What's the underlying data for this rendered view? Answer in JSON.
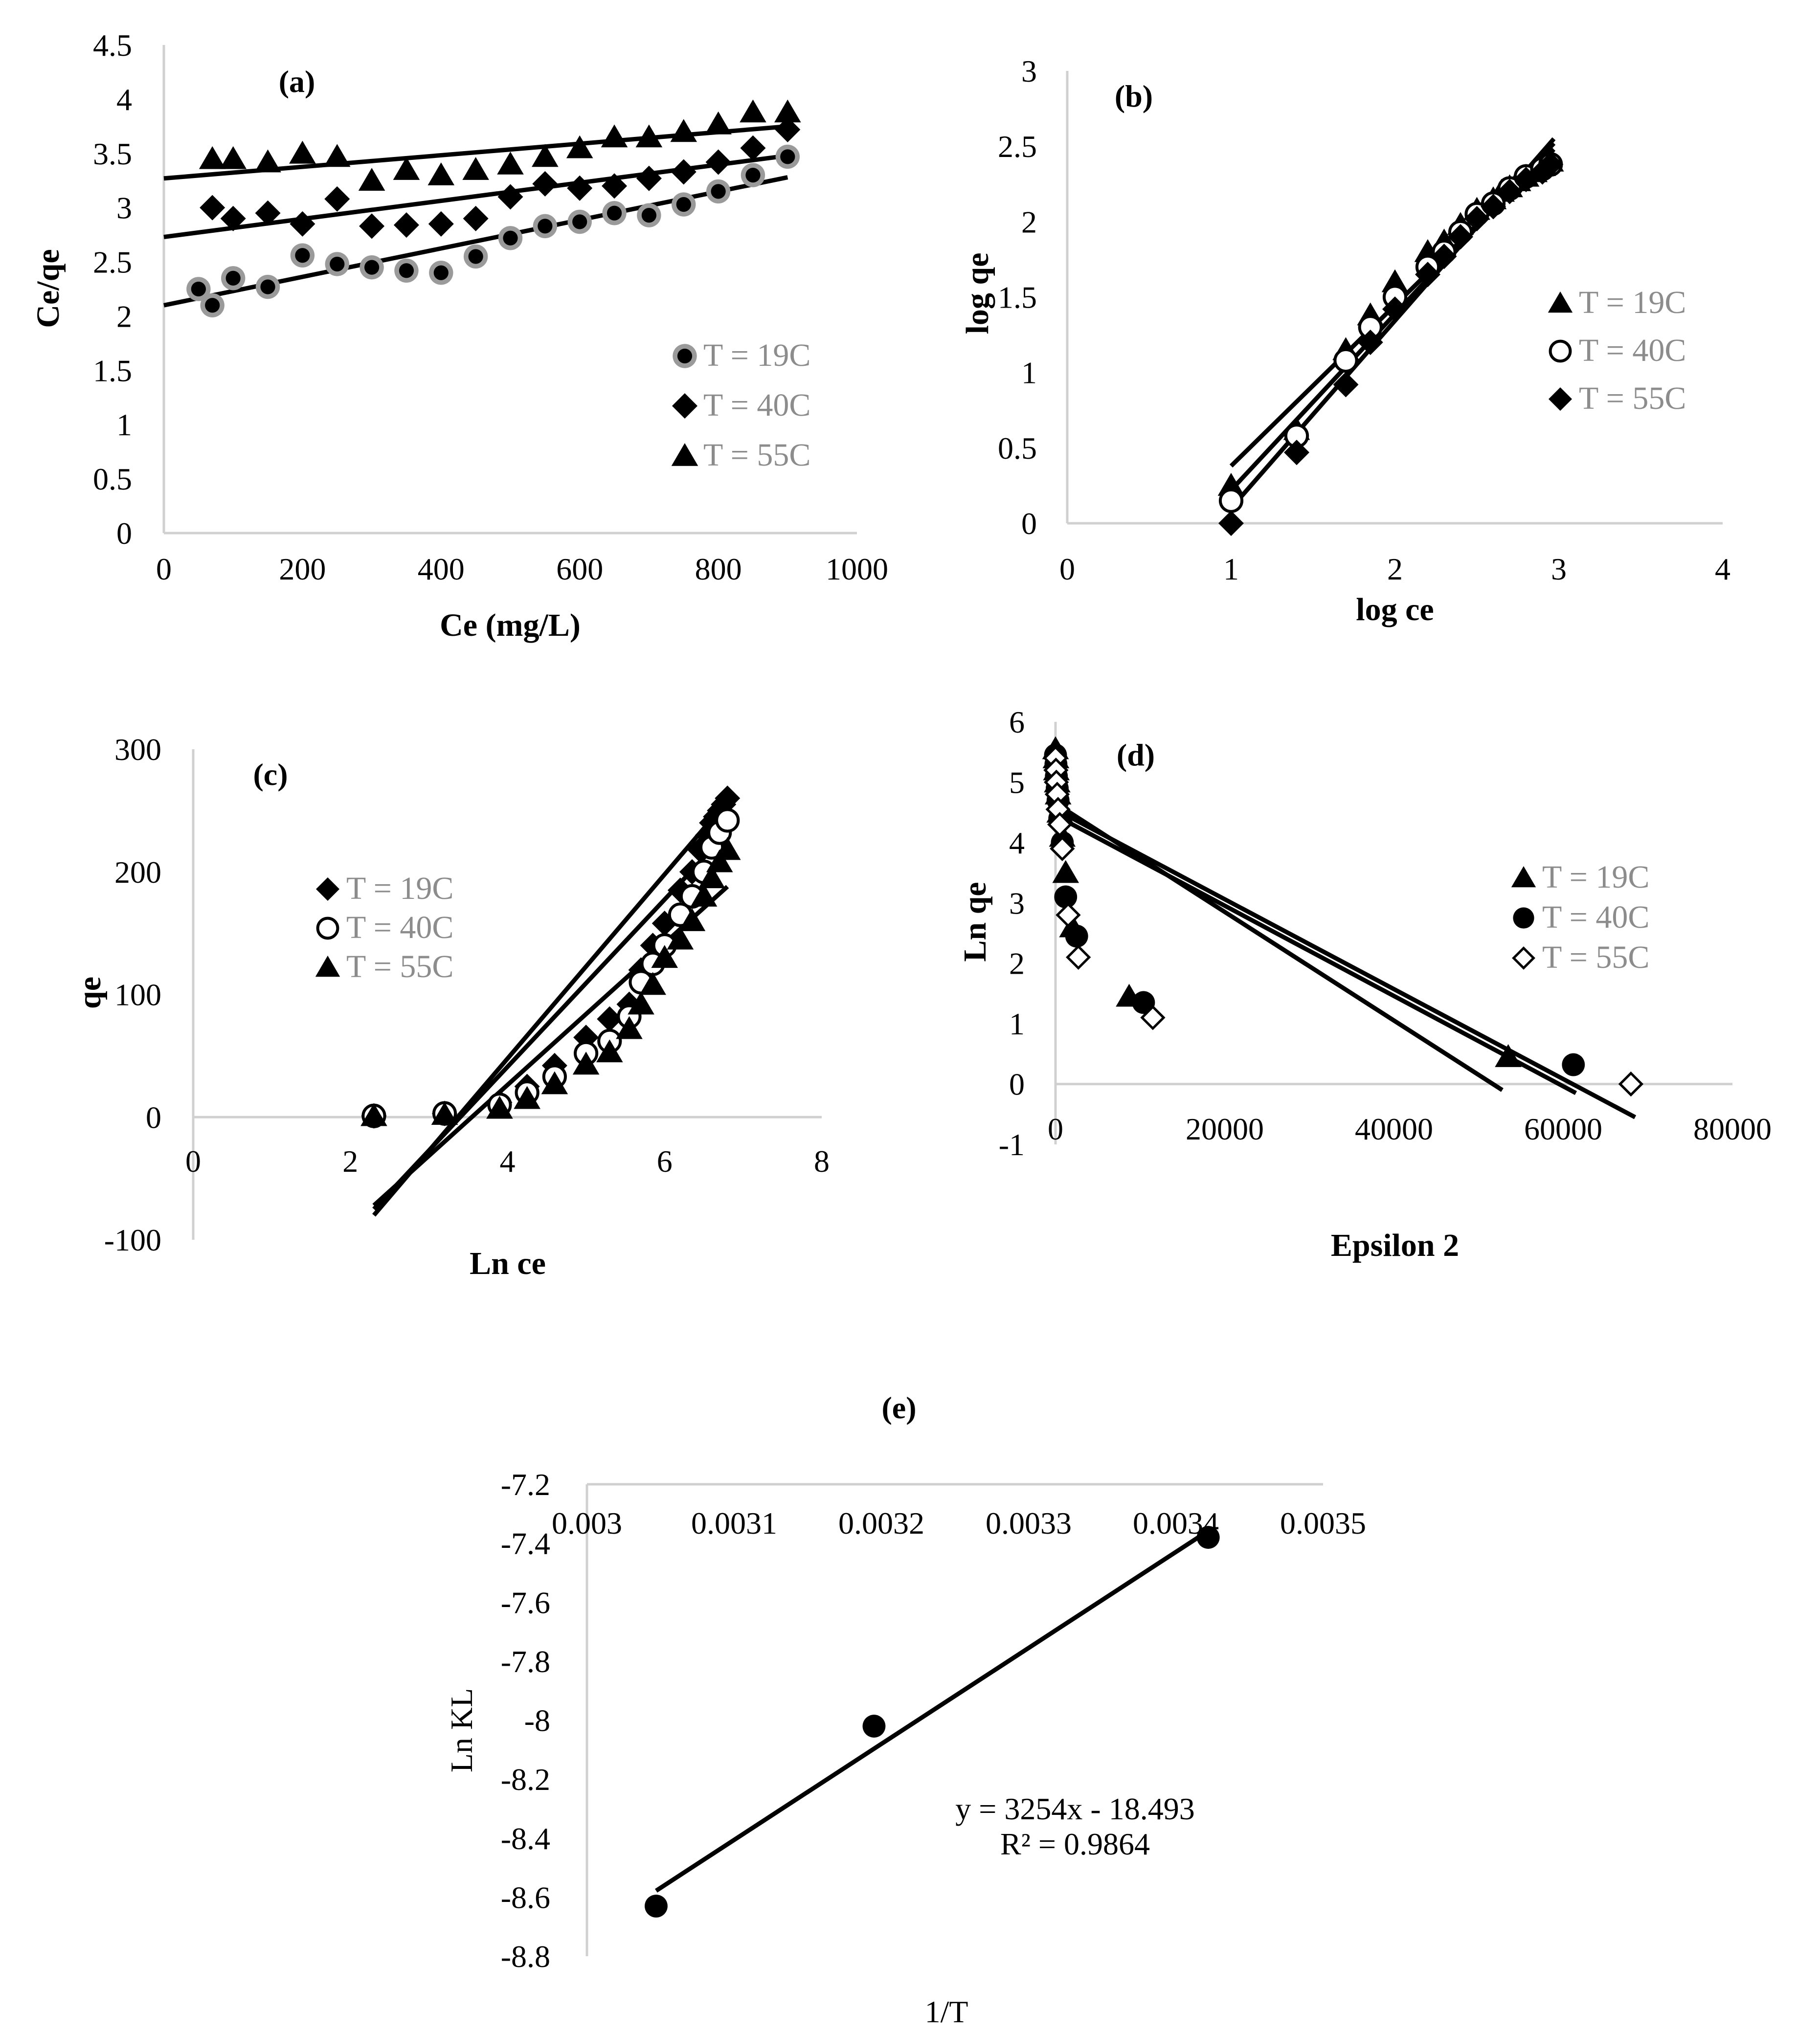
{
  "chart_data": [
    {
      "id": "a",
      "type": "scatter",
      "title": "(a)",
      "xlabel": "Ce (mg/L)",
      "ylabel": "Ce/qe",
      "xlim": [
        0,
        1000
      ],
      "ylim": [
        0,
        4.5
      ],
      "xticks": [
        "0",
        "200",
        "400",
        "600",
        "800",
        "1000"
      ],
      "yticks": [
        "0",
        "0.5",
        "1",
        "1.5",
        "2",
        "2.5",
        "3",
        "3.5",
        "4",
        "4.5"
      ],
      "legend_position": "right",
      "series": [
        {
          "name": "T = 19C",
          "marker": "circle-gray",
          "x": [
            50,
            70,
            100,
            150,
            200,
            250,
            300,
            350,
            400,
            450,
            500,
            550,
            600,
            650,
            700,
            750,
            800,
            850,
            900
          ],
          "y": [
            2.25,
            2.1,
            2.35,
            2.27,
            2.56,
            2.48,
            2.45,
            2.42,
            2.4,
            2.55,
            2.72,
            2.83,
            2.87,
            2.95,
            2.93,
            3.03,
            3.15,
            3.3,
            3.47
          ],
          "fit": [
            [
              0,
              2.1
            ],
            [
              900,
              3.28
            ]
          ]
        },
        {
          "name": "T = 40C",
          "marker": "diamond",
          "x": [
            70,
            100,
            150,
            200,
            250,
            300,
            350,
            400,
            450,
            500,
            550,
            600,
            650,
            700,
            750,
            800,
            850,
            900
          ],
          "y": [
            3.0,
            2.9,
            2.95,
            2.85,
            3.08,
            2.83,
            2.84,
            2.85,
            2.9,
            3.1,
            3.22,
            3.18,
            3.2,
            3.27,
            3.33,
            3.42,
            3.55,
            3.72
          ],
          "fit": [
            [
              0,
              2.73
            ],
            [
              900,
              3.48
            ]
          ]
        },
        {
          "name": "T = 55C",
          "marker": "triangle",
          "x": [
            70,
            100,
            150,
            200,
            250,
            300,
            350,
            400,
            450,
            500,
            550,
            600,
            650,
            700,
            750,
            800,
            850,
            900
          ],
          "y": [
            3.45,
            3.45,
            3.42,
            3.5,
            3.47,
            3.25,
            3.35,
            3.3,
            3.35,
            3.4,
            3.47,
            3.55,
            3.65,
            3.65,
            3.7,
            3.77,
            3.88,
            3.88
          ],
          "fit": [
            [
              0,
              3.27
            ],
            [
              900,
              3.75
            ]
          ]
        }
      ]
    },
    {
      "id": "b",
      "type": "scatter",
      "title": "(b)",
      "xlabel": "log ce",
      "ylabel": "log qe",
      "xlim": [
        0,
        4
      ],
      "ylim": [
        0,
        3
      ],
      "xticks": [
        "0",
        "1",
        "2",
        "3",
        "4"
      ],
      "yticks": [
        "0",
        "0.5",
        "1",
        "1.5",
        "2",
        "2.5",
        "3"
      ],
      "legend_position": "right",
      "series": [
        {
          "name": "T = 19C",
          "marker": "triangle",
          "x": [
            1.0,
            1.4,
            1.7,
            1.85,
            2.0,
            2.2,
            2.3,
            2.4,
            2.5,
            2.6,
            2.65,
            2.7,
            2.75,
            2.8,
            2.85,
            2.9,
            2.95
          ],
          "y": [
            0.25,
            0.62,
            1.15,
            1.38,
            1.6,
            1.8,
            1.87,
            1.98,
            2.08,
            2.15,
            2.2,
            2.23,
            2.27,
            2.3,
            2.33,
            2.37,
            2.4
          ],
          "fit": [
            [
              1.0,
              0.38
            ],
            [
              2.97,
              2.48
            ]
          ]
        },
        {
          "name": "T = 40C",
          "marker": "circle-open",
          "x": [
            1.0,
            1.4,
            1.7,
            1.85,
            2.0,
            2.2,
            2.3,
            2.4,
            2.5,
            2.6,
            2.7,
            2.8,
            2.9,
            2.95
          ],
          "y": [
            0.15,
            0.58,
            1.08,
            1.3,
            1.5,
            1.7,
            1.8,
            1.93,
            2.05,
            2.12,
            2.22,
            2.3,
            2.35,
            2.38
          ],
          "fit": [
            [
              1.0,
              0.22
            ],
            [
              2.97,
              2.52
            ]
          ]
        },
        {
          "name": "T = 55C",
          "marker": "diamond",
          "x": [
            1.0,
            1.4,
            1.7,
            1.85,
            2.0,
            2.2,
            2.3,
            2.4,
            2.5,
            2.6,
            2.7,
            2.8,
            2.9,
            2.95
          ],
          "y": [
            0.0,
            0.47,
            0.92,
            1.2,
            1.42,
            1.65,
            1.77,
            1.9,
            2.02,
            2.1,
            2.2,
            2.28,
            2.33,
            2.38
          ],
          "fit": [
            [
              1.0,
              0.1
            ],
            [
              2.97,
              2.55
            ]
          ]
        }
      ]
    },
    {
      "id": "c",
      "type": "scatter",
      "title": "(c)",
      "xlabel": "Ln ce",
      "ylabel": "qe",
      "xlim": [
        0,
        8
      ],
      "ylim": [
        -100,
        300
      ],
      "xticks": [
        "0",
        "2",
        "4",
        "6",
        "8"
      ],
      "yticks": [
        "-100",
        "0",
        "100",
        "200",
        "300"
      ],
      "legend_position": "left",
      "series": [
        {
          "name": "T = 19C",
          "marker": "diamond",
          "x": [
            2.3,
            3.2,
            3.9,
            4.25,
            4.6,
            5.0,
            5.3,
            5.55,
            5.7,
            5.85,
            6.0,
            6.2,
            6.35,
            6.45,
            6.55,
            6.6,
            6.65,
            6.7,
            6.75,
            6.8
          ],
          "y": [
            1,
            3,
            12,
            25,
            42,
            65,
            80,
            92,
            120,
            140,
            158,
            185,
            200,
            218,
            230,
            240,
            245,
            250,
            255,
            260
          ],
          "fit": [
            [
              2.3,
              -80
            ],
            [
              6.8,
              258
            ]
          ]
        },
        {
          "name": "T = 40C",
          "marker": "circle-open",
          "x": [
            2.3,
            3.2,
            3.9,
            4.25,
            4.6,
            5.0,
            5.3,
            5.55,
            5.7,
            5.85,
            6.0,
            6.2,
            6.35,
            6.5,
            6.6,
            6.7,
            6.8
          ],
          "y": [
            1,
            3,
            10,
            20,
            33,
            52,
            62,
            82,
            110,
            125,
            140,
            165,
            180,
            200,
            220,
            232,
            242
          ],
          "fit": [
            [
              2.3,
              -75
            ],
            [
              6.8,
              232
            ]
          ]
        },
        {
          "name": "T = 55C",
          "marker": "triangle",
          "x": [
            2.3,
            3.2,
            3.9,
            4.25,
            4.6,
            5.0,
            5.3,
            5.55,
            5.7,
            5.85,
            6.0,
            6.2,
            6.35,
            6.5,
            6.6,
            6.7,
            6.8
          ],
          "y": [
            1,
            2,
            7,
            15,
            27,
            43,
            53,
            72,
            92,
            108,
            130,
            145,
            160,
            180,
            195,
            208,
            218
          ],
          "fit": [
            [
              2.3,
              -72
            ],
            [
              6.8,
              188
            ]
          ]
        }
      ]
    },
    {
      "id": "d",
      "type": "scatter",
      "title": "(d)",
      "xlabel": "Epsilon 2",
      "ylabel": "Ln qe",
      "xlim": [
        0,
        80000
      ],
      "ylim": [
        -1,
        6
      ],
      "xticks": [
        "0",
        "20000",
        "40000",
        "60000",
        "80000"
      ],
      "yticks": [
        "-1",
        "0",
        "1",
        "2",
        "3",
        "4",
        "5",
        "6"
      ],
      "legend_position": "right",
      "series": [
        {
          "name": "T = 19C",
          "marker": "triangle",
          "x": [
            0,
            50,
            100,
            200,
            300,
            500,
            800,
            1200,
            2000,
            8700,
            53500
          ],
          "y": [
            5.55,
            5.4,
            5.2,
            5.0,
            4.8,
            4.5,
            4.1,
            3.5,
            2.6,
            1.45,
            0.45
          ],
          "fit": [
            [
              0,
              4.45
            ],
            [
              61500,
              -0.15
            ]
          ]
        },
        {
          "name": "T = 40C",
          "marker": "circle",
          "x": [
            0,
            50,
            100,
            200,
            300,
            500,
            800,
            1200,
            2500,
            10400,
            61200
          ],
          "y": [
            5.45,
            5.3,
            5.1,
            4.9,
            4.7,
            4.4,
            4.0,
            3.1,
            2.45,
            1.35,
            0.32
          ],
          "fit": [
            [
              0,
              4.65
            ],
            [
              52800,
              -0.1
            ]
          ]
        },
        {
          "name": "T = 55C",
          "marker": "diamond-open",
          "x": [
            0,
            50,
            100,
            200,
            300,
            500,
            800,
            1500,
            2700,
            11500,
            68000
          ],
          "y": [
            5.4,
            5.2,
            5.0,
            4.8,
            4.55,
            4.3,
            3.9,
            2.8,
            2.1,
            1.1,
            0.0
          ],
          "fit": [
            [
              0,
              4.55
            ],
            [
              68500,
              -0.55
            ]
          ]
        }
      ]
    },
    {
      "id": "e",
      "type": "scatter",
      "title": "(e)",
      "xlabel": "1/T",
      "ylabel": "Ln KL",
      "xlim": [
        0.003,
        0.0035
      ],
      "ylim": [
        -8.8,
        -7.2
      ],
      "x_axis_crosses": "top",
      "xticks": [
        "0.003",
        "0.0031",
        "0.0032",
        "0.0033",
        "0.0034",
        "0.0035"
      ],
      "yticks": [
        "-7.2",
        "-7.4",
        "-7.6",
        "-7.8",
        "-8",
        "-8.2",
        "-8.4",
        "-8.6",
        "-8.8"
      ],
      "equation": "y = 3254x - 18.493",
      "r_squared": "R² = 0.9864",
      "series": [
        {
          "marker": "circle",
          "x": [
            0.003047,
            0.003195,
            0.003422
          ],
          "y": [
            -8.63,
            -8.02,
            -7.38
          ],
          "fit": [
            [
              0.003047,
              -8.578
            ],
            [
              0.003422,
              -7.358
            ]
          ]
        }
      ]
    }
  ]
}
